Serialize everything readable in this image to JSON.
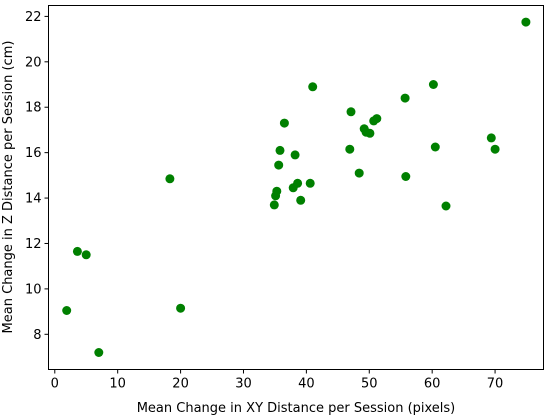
{
  "chart_data": {
    "type": "scatter",
    "xlabel": "Mean Change in XY Distance per Session (pixels)",
    "ylabel": "Mean Change in Z Distance per Session (cm)",
    "xlim": [
      -1.0,
      77.7
    ],
    "ylim": [
      6.45,
      22.48
    ],
    "xticks": [
      0,
      10,
      20,
      30,
      40,
      50,
      60,
      70
    ],
    "yticks": [
      8,
      10,
      12,
      14,
      16,
      18,
      20,
      22
    ],
    "grid": false,
    "legend": "none",
    "marker_color": "#008000",
    "points": [
      {
        "x": 1.9,
        "y": 9.05
      },
      {
        "x": 3.6,
        "y": 11.65
      },
      {
        "x": 5.0,
        "y": 11.5
      },
      {
        "x": 7.0,
        "y": 7.2
      },
      {
        "x": 18.3,
        "y": 14.85
      },
      {
        "x": 20.0,
        "y": 9.15
      },
      {
        "x": 34.9,
        "y": 13.7
      },
      {
        "x": 35.1,
        "y": 14.1
      },
      {
        "x": 35.3,
        "y": 14.3
      },
      {
        "x": 35.6,
        "y": 15.45
      },
      {
        "x": 35.8,
        "y": 16.1
      },
      {
        "x": 36.5,
        "y": 17.3
      },
      {
        "x": 37.9,
        "y": 14.45
      },
      {
        "x": 38.2,
        "y": 15.9
      },
      {
        "x": 38.6,
        "y": 14.65
      },
      {
        "x": 39.1,
        "y": 13.9
      },
      {
        "x": 40.6,
        "y": 14.65
      },
      {
        "x": 41.0,
        "y": 18.9
      },
      {
        "x": 46.9,
        "y": 16.15
      },
      {
        "x": 47.1,
        "y": 17.8
      },
      {
        "x": 48.4,
        "y": 15.1
      },
      {
        "x": 49.2,
        "y": 17.05
      },
      {
        "x": 49.5,
        "y": 16.9
      },
      {
        "x": 50.1,
        "y": 16.85
      },
      {
        "x": 50.7,
        "y": 17.4
      },
      {
        "x": 51.2,
        "y": 17.5
      },
      {
        "x": 55.7,
        "y": 18.4
      },
      {
        "x": 55.8,
        "y": 14.95
      },
      {
        "x": 60.2,
        "y": 19.0
      },
      {
        "x": 60.5,
        "y": 16.25
      },
      {
        "x": 62.2,
        "y": 13.65
      },
      {
        "x": 69.4,
        "y": 16.65
      },
      {
        "x": 70.0,
        "y": 16.15
      },
      {
        "x": 74.9,
        "y": 21.75
      }
    ]
  }
}
